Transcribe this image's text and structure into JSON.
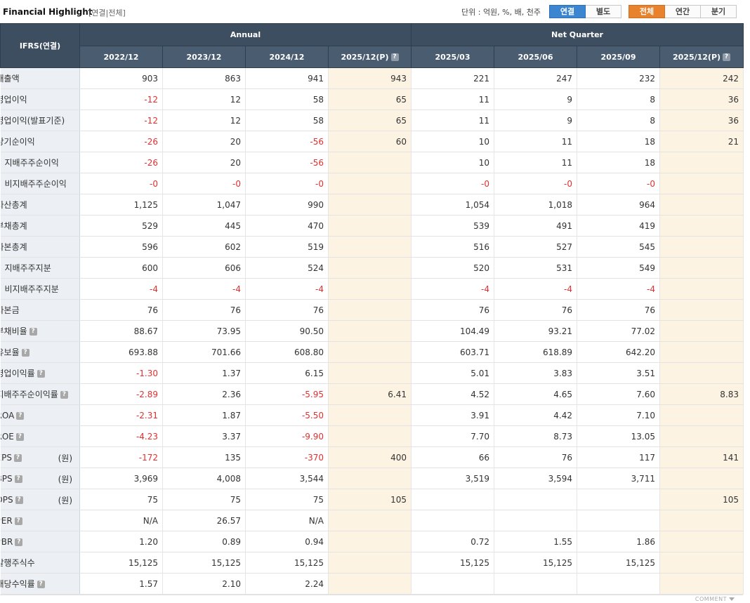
{
  "header": {
    "title": "Financial Highlight",
    "crumb": "[연결|전체]",
    "unit": "단위 : 억원, %, 배, 천주",
    "basis_buttons": [
      "연결",
      "별도"
    ],
    "period_buttons": [
      "전체",
      "연간",
      "분기"
    ]
  },
  "table": {
    "ifrs_label": "IFRS(연결)",
    "annual_label": "Annual",
    "quarter_label": "Net Quarter",
    "columns": [
      "2022/12",
      "2023/12",
      "2024/12",
      "2025/12(P)",
      "2025/03",
      "2025/06",
      "2025/09",
      "2025/12(P)"
    ],
    "unit_won": "(원)",
    "rows": [
      {
        "label": "매출액",
        "values": [
          "903",
          "863",
          "941",
          "943",
          "221",
          "247",
          "232",
          "242"
        ]
      },
      {
        "label": "영업이익",
        "values": [
          "-12",
          "12",
          "58",
          "65",
          "11",
          "9",
          "8",
          "36"
        ]
      },
      {
        "label": "영업이익(발표기준)",
        "values": [
          "-12",
          "12",
          "58",
          "65",
          "11",
          "9",
          "8",
          "36"
        ]
      },
      {
        "label": "당기순이익",
        "values": [
          "-26",
          "20",
          "-56",
          "60",
          "10",
          "11",
          "18",
          "21"
        ]
      },
      {
        "label": "지배주주순이익",
        "values": [
          "-26",
          "20",
          "-56",
          "",
          "10",
          "11",
          "18",
          ""
        ]
      },
      {
        "label": "비지배주주순이익",
        "values": [
          "-0",
          "-0",
          "-0",
          "",
          "-0",
          "-0",
          "-0",
          ""
        ]
      },
      {
        "label": "자산총계",
        "values": [
          "1,125",
          "1,047",
          "990",
          "",
          "1,054",
          "1,018",
          "964",
          ""
        ]
      },
      {
        "label": "부채총계",
        "values": [
          "529",
          "445",
          "470",
          "",
          "539",
          "491",
          "419",
          ""
        ]
      },
      {
        "label": "자본총계",
        "values": [
          "596",
          "602",
          "519",
          "",
          "516",
          "527",
          "545",
          ""
        ]
      },
      {
        "label": "지배주주지분",
        "values": [
          "600",
          "606",
          "524",
          "",
          "520",
          "531",
          "549",
          ""
        ]
      },
      {
        "label": "비지배주주지분",
        "values": [
          "-4",
          "-4",
          "-4",
          "",
          "-4",
          "-4",
          "-4",
          ""
        ]
      },
      {
        "label": "자본금",
        "values": [
          "76",
          "76",
          "76",
          "",
          "76",
          "76",
          "76",
          ""
        ]
      },
      {
        "label": "부채비율",
        "values": [
          "88.67",
          "73.95",
          "90.50",
          "",
          "104.49",
          "93.21",
          "77.02",
          ""
        ]
      },
      {
        "label": "유보율",
        "values": [
          "693.88",
          "701.66",
          "608.80",
          "",
          "603.71",
          "618.89",
          "642.20",
          ""
        ]
      },
      {
        "label": "영업이익률",
        "values": [
          "-1.30",
          "1.37",
          "6.15",
          "",
          "5.01",
          "3.83",
          "3.51",
          ""
        ]
      },
      {
        "label": "지배주주순이익률",
        "values": [
          "-2.89",
          "2.36",
          "-5.95",
          "6.41",
          "4.52",
          "4.65",
          "7.60",
          "8.83"
        ]
      },
      {
        "label": "ROA",
        "values": [
          "-2.31",
          "1.87",
          "-5.50",
          "",
          "3.91",
          "4.42",
          "7.10",
          ""
        ]
      },
      {
        "label": "ROE",
        "values": [
          "-4.23",
          "3.37",
          "-9.90",
          "",
          "7.70",
          "8.73",
          "13.05",
          ""
        ]
      },
      {
        "label": "EPS",
        "values": [
          "-172",
          "135",
          "-370",
          "400",
          "66",
          "76",
          "117",
          "141"
        ]
      },
      {
        "label": "BPS",
        "values": [
          "3,969",
          "4,008",
          "3,544",
          "",
          "3,519",
          "3,594",
          "3,711",
          ""
        ]
      },
      {
        "label": "DPS",
        "values": [
          "75",
          "75",
          "75",
          "105",
          "",
          "",
          "",
          "105"
        ]
      },
      {
        "label": "PER",
        "values": [
          "N/A",
          "26.57",
          "N/A",
          "",
          "",
          "",
          "",
          ""
        ]
      },
      {
        "label": "PBR",
        "values": [
          "1.20",
          "0.89",
          "0.94",
          "",
          "0.72",
          "1.55",
          "1.86",
          ""
        ]
      },
      {
        "label": "발행주식수",
        "values": [
          "15,125",
          "15,125",
          "15,125",
          "",
          "15,125",
          "15,125",
          "15,125",
          ""
        ]
      },
      {
        "label": "배당수익률",
        "values": [
          "1.57",
          "2.10",
          "2.24",
          "",
          "",
          "",
          "",
          ""
        ]
      }
    ]
  },
  "footer": {
    "comment": "COMMENT"
  }
}
